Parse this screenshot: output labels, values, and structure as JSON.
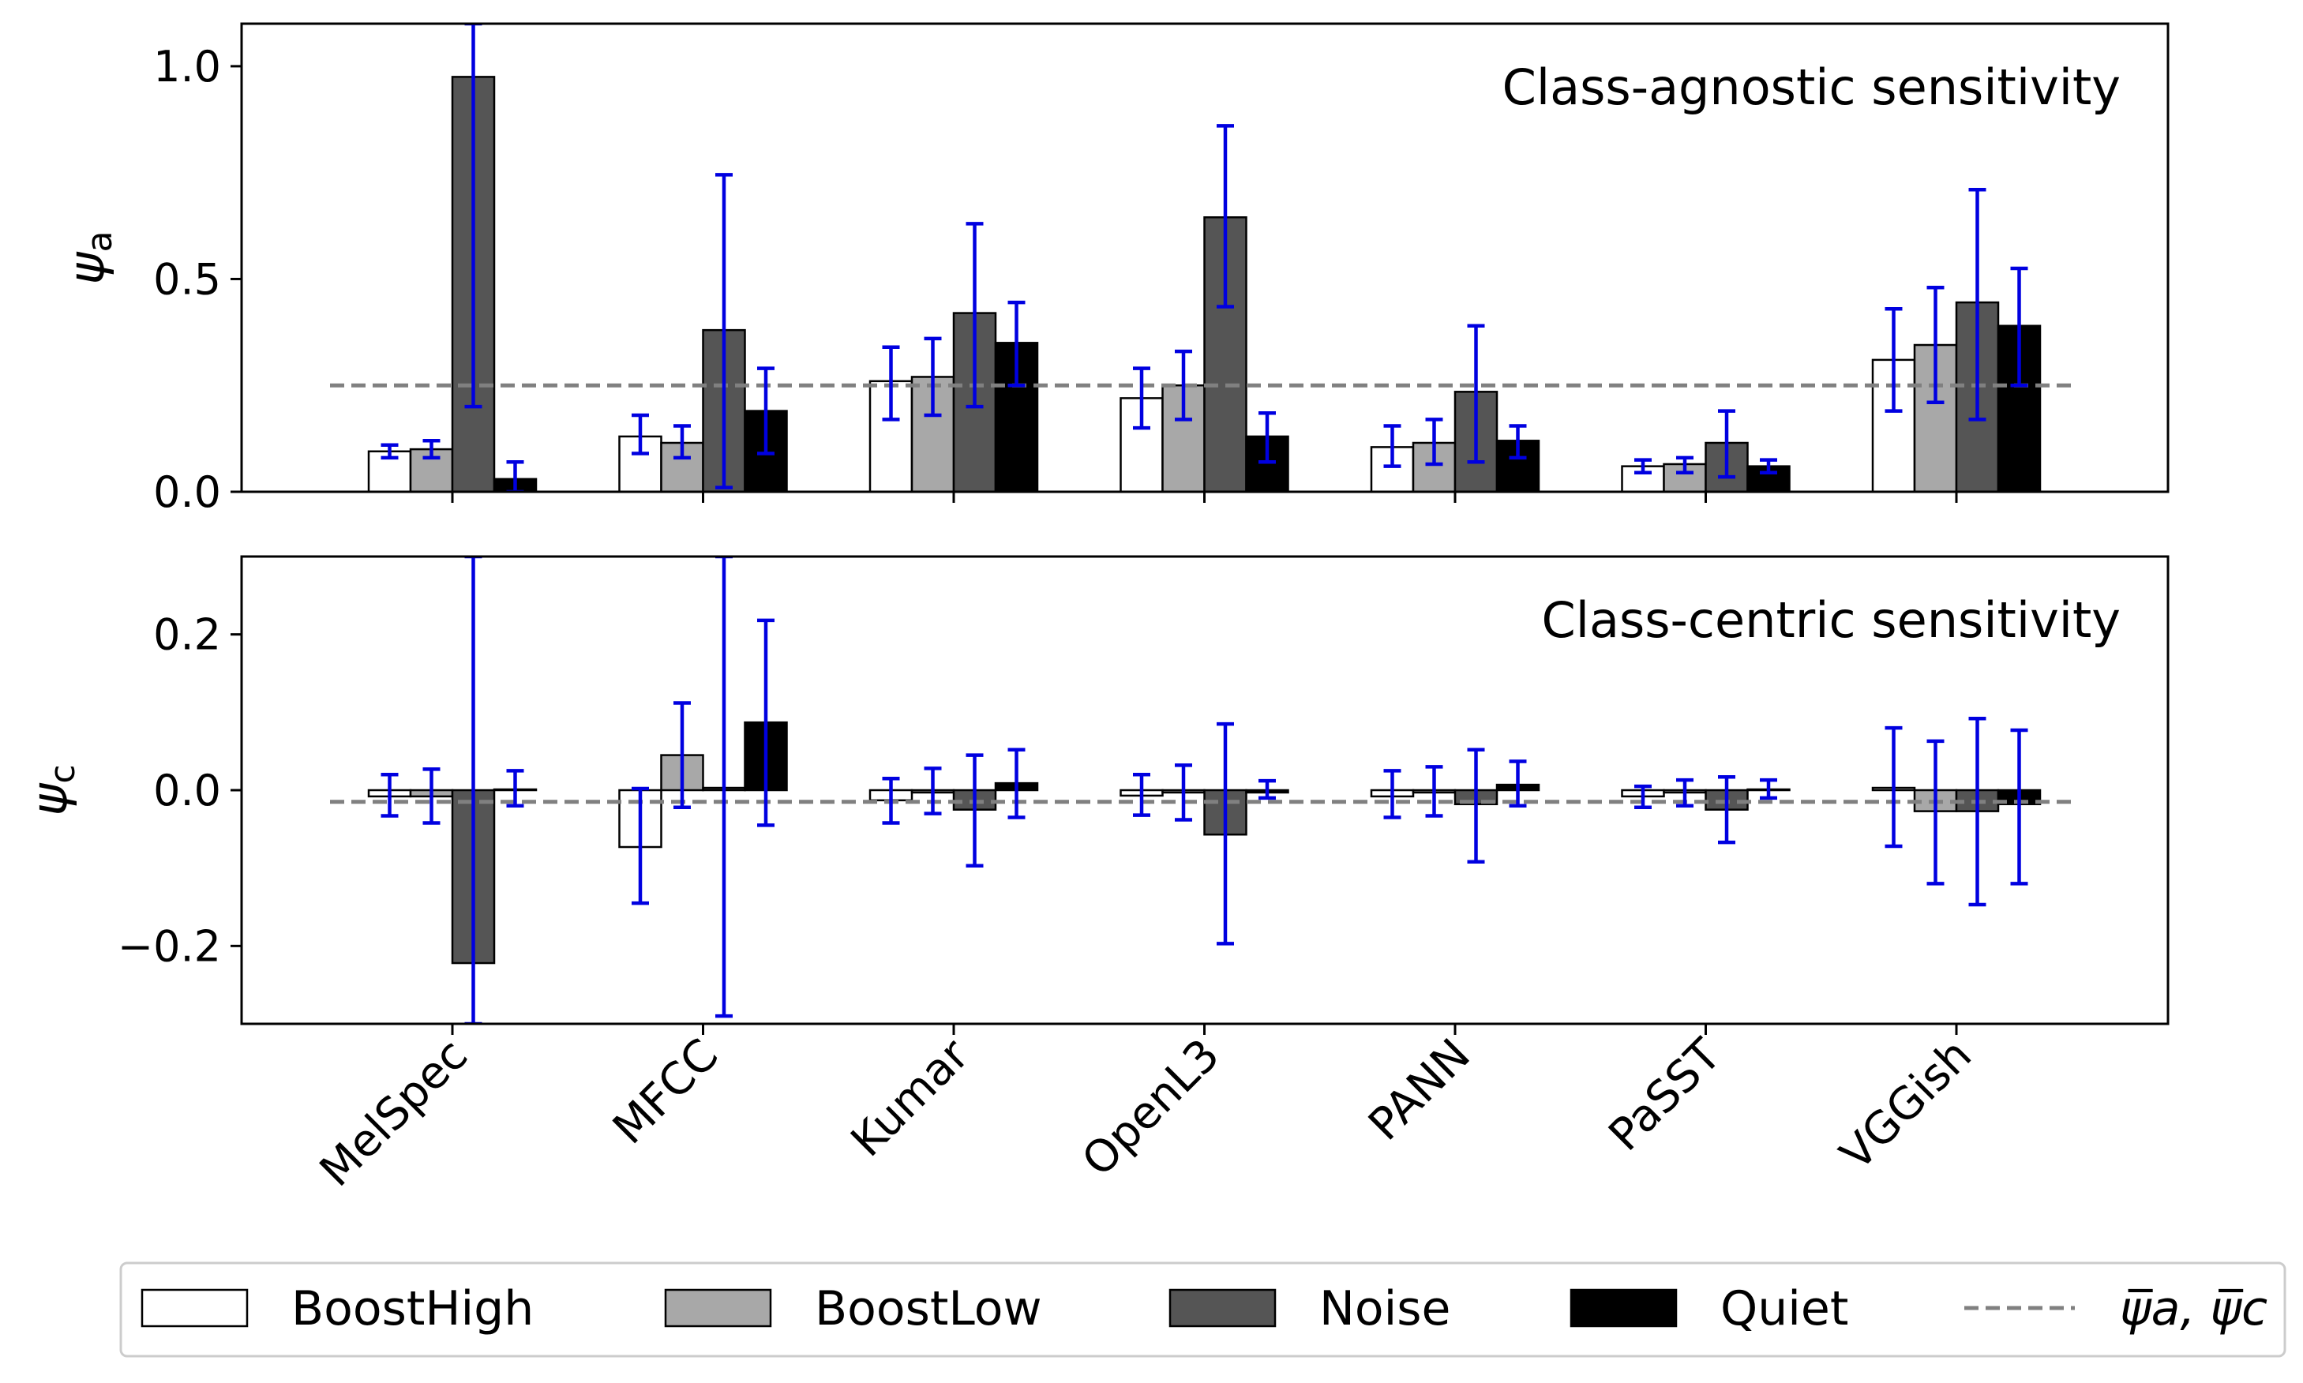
{
  "chart_data": {
    "type": "bar",
    "categories": [
      "MelSpec",
      "MFCC",
      "Kumar",
      "OpenL3",
      "PANN",
      "PaSST",
      "VGGish"
    ],
    "series_names": [
      "BoostHigh",
      "BoostLow",
      "Noise",
      "Quiet"
    ],
    "series_colors": [
      "#ffffff",
      "#a8a8a8",
      "#555555",
      "#000000"
    ],
    "error_bar_color": "#0000e0",
    "mean_line_color": "#808080",
    "mean_line_label": "ψ̅a, ψ̅c",
    "legend_placement": "bottom",
    "panels": [
      {
        "title": "Class-agnostic sensitivity",
        "ylabel": "ψ",
        "ylabel_sub": "a",
        "ylim": [
          0.0,
          1.1
        ],
        "yticks": [
          0.0,
          0.5,
          1.0
        ],
        "ytick_labels": [
          "0.0",
          "0.5",
          "1.0"
        ],
        "mean_line": 0.25,
        "series": [
          {
            "name": "BoostHigh",
            "values": [
              0.095,
              0.13,
              0.26,
              0.22,
              0.105,
              0.06,
              0.31
            ],
            "err_low": [
              0.08,
              0.09,
              0.17,
              0.15,
              0.06,
              0.045,
              0.19
            ],
            "err_high": [
              0.11,
              0.18,
              0.34,
              0.29,
              0.155,
              0.075,
              0.43
            ]
          },
          {
            "name": "BoostLow",
            "values": [
              0.1,
              0.115,
              0.27,
              0.25,
              0.115,
              0.065,
              0.345
            ],
            "err_low": [
              0.08,
              0.08,
              0.18,
              0.17,
              0.065,
              0.045,
              0.21
            ],
            "err_high": [
              0.12,
              0.155,
              0.36,
              0.33,
              0.17,
              0.08,
              0.48
            ]
          },
          {
            "name": "Noise",
            "values": [
              0.975,
              0.38,
              0.42,
              0.645,
              0.235,
              0.115,
              0.445
            ],
            "err_low": [
              0.2,
              0.01,
              0.2,
              0.435,
              0.07,
              0.035,
              0.17
            ],
            "err_high": [
              1.1,
              0.745,
              0.63,
              0.86,
              0.39,
              0.19,
              0.71
            ]
          },
          {
            "name": "Quiet",
            "values": [
              0.03,
              0.19,
              0.35,
              0.13,
              0.12,
              0.06,
              0.39
            ],
            "err_low": [
              0.0,
              0.09,
              0.25,
              0.07,
              0.08,
              0.045,
              0.25
            ],
            "err_high": [
              0.07,
              0.29,
              0.445,
              0.185,
              0.155,
              0.075,
              0.525
            ]
          }
        ]
      },
      {
        "title": "Class-centric sensitivity",
        "ylabel": "ψ",
        "ylabel_sub": "c",
        "ylim": [
          -0.3,
          0.3
        ],
        "yticks": [
          -0.2,
          0.0,
          0.2
        ],
        "ytick_labels": [
          "−0.2",
          "0.0",
          "0.2"
        ],
        "mean_line": -0.015,
        "series": [
          {
            "name": "BoostHigh",
            "values": [
              -0.008,
              -0.073,
              -0.013,
              -0.007,
              -0.008,
              -0.008,
              0.003
            ],
            "err_low": [
              -0.033,
              -0.145,
              -0.042,
              -0.032,
              -0.035,
              -0.022,
              -0.072
            ],
            "err_high": [
              0.02,
              0.002,
              0.015,
              0.02,
              0.025,
              0.005,
              0.08
            ]
          },
          {
            "name": "BoostLow",
            "values": [
              -0.008,
              0.045,
              -0.003,
              -0.003,
              -0.003,
              -0.003,
              -0.027
            ],
            "err_low": [
              -0.042,
              -0.022,
              -0.03,
              -0.038,
              -0.033,
              -0.02,
              -0.12
            ],
            "err_high": [
              0.027,
              0.112,
              0.028,
              0.032,
              0.03,
              0.013,
              0.063
            ]
          },
          {
            "name": "Noise",
            "values": [
              -0.222,
              0.003,
              -0.025,
              -0.057,
              -0.018,
              -0.025,
              -0.027
            ],
            "err_low": [
              -0.3,
              -0.29,
              -0.097,
              -0.197,
              -0.092,
              -0.067,
              -0.147
            ],
            "err_high": [
              0.3,
              0.3,
              0.045,
              0.085,
              0.052,
              0.017,
              0.092
            ]
          },
          {
            "name": "Quiet",
            "values": [
              0.001,
              0.087,
              0.009,
              -0.003,
              0.007,
              0.001,
              -0.018
            ],
            "err_low": [
              -0.02,
              -0.045,
              -0.035,
              -0.01,
              -0.02,
              -0.01,
              -0.12
            ],
            "err_high": [
              0.025,
              0.218,
              0.052,
              0.012,
              0.037,
              0.013,
              0.077
            ]
          }
        ]
      }
    ]
  }
}
